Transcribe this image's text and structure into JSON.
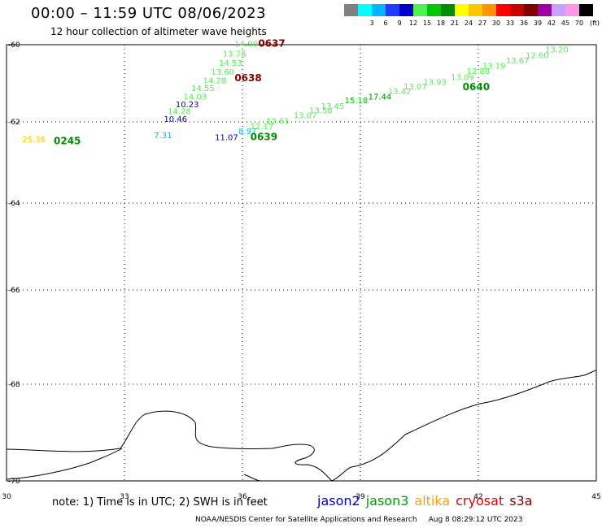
{
  "header": {
    "title": "00:00 – 11:59 UTC 08/06/2023",
    "subtitle": "12 hour collection of altimeter wave heights"
  },
  "colorbar": {
    "unit": "(ft)",
    "bins": [
      {
        "color": "#808080",
        "label": ""
      },
      {
        "color": "#00ffff",
        "label": "3"
      },
      {
        "color": "#00b4ff",
        "label": "6"
      },
      {
        "color": "#1e3cff",
        "label": "9"
      },
      {
        "color": "#0000c8",
        "label": "12"
      },
      {
        "color": "#50f050",
        "label": "15"
      },
      {
        "color": "#00c800",
        "label": "18"
      },
      {
        "color": "#008c00",
        "label": "21"
      },
      {
        "color": "#ffff00",
        "label": "24"
      },
      {
        "color": "#ffc800",
        "label": "27"
      },
      {
        "color": "#ff9600",
        "label": "30"
      },
      {
        "color": "#ff0000",
        "label": "33"
      },
      {
        "color": "#c80000",
        "label": "36"
      },
      {
        "color": "#800000",
        "label": "39"
      },
      {
        "color": "#a000a0",
        "label": "42"
      },
      {
        "color": "#c8a0ff",
        "label": "45"
      },
      {
        "color": "#ff96e6",
        "label": "70"
      },
      {
        "color": "#000000",
        "label": ""
      }
    ]
  },
  "map": {
    "lon_range": [
      30,
      45
    ],
    "lat_range": [
      -70,
      -60
    ],
    "lon_ticks": [
      "30",
      "33",
      "36",
      "39",
      "42",
      "45"
    ],
    "lat_ticks": [
      {
        "label": "-60",
        "lat": -60
      },
      {
        "label": "-62",
        "lat": -62
      },
      {
        "label": "-64",
        "lat": -64
      },
      {
        "label": "-66",
        "lat": -66
      },
      {
        "label": "-68",
        "lat": -68
      },
      {
        "label": "-70",
        "lat": -70
      }
    ],
    "observations": [
      {
        "text": "14.90",
        "lon": 35.8,
        "lat": -60.05,
        "color": "#50f050"
      },
      {
        "text": "13.78",
        "lon": 35.5,
        "lat": -60.3,
        "color": "#50f050"
      },
      {
        "text": "14.53",
        "lon": 35.4,
        "lat": -60.55,
        "color": "#50f050"
      },
      {
        "text": "13.60",
        "lon": 35.2,
        "lat": -60.78,
        "color": "#50f050"
      },
      {
        "text": "14.28",
        "lon": 35.0,
        "lat": -61.0,
        "color": "#50f050"
      },
      {
        "text": "14.55",
        "lon": 34.7,
        "lat": -61.2,
        "color": "#50f050"
      },
      {
        "text": "14.03",
        "lon": 34.5,
        "lat": -61.42,
        "color": "#50f050"
      },
      {
        "text": "10.23",
        "lon": 34.3,
        "lat": -61.62,
        "color": "#0000c8"
      },
      {
        "text": "14.28",
        "lon": 34.1,
        "lat": -61.8,
        "color": "#50f050"
      },
      {
        "text": "10.46",
        "lon": 34.0,
        "lat": -62.0,
        "color": "#0000c8"
      },
      {
        "text": "7.31",
        "lon": 33.75,
        "lat": -62.4,
        "color": "#00b4ff"
      },
      {
        "text": "25.36",
        "lon": 30.4,
        "lat": -62.5,
        "color": "#ffc800"
      },
      {
        "text": "11.07",
        "lon": 35.3,
        "lat": -62.45,
        "color": "#0000c8"
      },
      {
        "text": "8.97",
        "lon": 35.9,
        "lat": -62.3,
        "color": "#00b4ff"
      },
      {
        "text": "12.17",
        "lon": 36.2,
        "lat": -62.18,
        "color": "#50f050"
      },
      {
        "text": "12.61",
        "lon": 36.6,
        "lat": -62.05,
        "color": "#50f050"
      },
      {
        "text": "13.07",
        "lon": 37.3,
        "lat": -61.9,
        "color": "#50f050"
      },
      {
        "text": "13.58",
        "lon": 37.7,
        "lat": -61.78,
        "color": "#50f050"
      },
      {
        "text": "13.45",
        "lon": 38.0,
        "lat": -61.66,
        "color": "#50f050"
      },
      {
        "text": "15.18",
        "lon": 38.6,
        "lat": -61.52,
        "color": "#00c800"
      },
      {
        "text": "17.44",
        "lon": 39.2,
        "lat": -61.42,
        "color": "#008c00"
      },
      {
        "text": "13.42",
        "lon": 39.7,
        "lat": -61.28,
        "color": "#50f050"
      },
      {
        "text": "13.07",
        "lon": 40.1,
        "lat": -61.16,
        "color": "#50f050"
      },
      {
        "text": "13.93",
        "lon": 40.6,
        "lat": -61.04,
        "color": "#50f050"
      },
      {
        "text": "13.09",
        "lon": 41.3,
        "lat": -60.92,
        "color": "#50f050"
      },
      {
        "text": "12.88",
        "lon": 41.7,
        "lat": -60.76,
        "color": "#50f050"
      },
      {
        "text": "13.19",
        "lon": 42.1,
        "lat": -60.62,
        "color": "#50f050"
      },
      {
        "text": "13.67",
        "lon": 42.7,
        "lat": -60.48,
        "color": "#50f050"
      },
      {
        "text": "12.60",
        "lon": 43.2,
        "lat": -60.35,
        "color": "#50f050"
      },
      {
        "text": "13.20",
        "lon": 43.7,
        "lat": -60.2,
        "color": "#50f050"
      }
    ],
    "time_labels": [
      {
        "text": "0637",
        "lon": 36.4,
        "lat": -60.05,
        "color": "#800000"
      },
      {
        "text": "0638",
        "lon": 35.8,
        "lat": -60.95,
        "color": "#800000"
      },
      {
        "text": "0639",
        "lon": 36.2,
        "lat": -62.45,
        "color": "#008c00"
      },
      {
        "text": "0640",
        "lon": 41.6,
        "lat": -61.18,
        "color": "#008c00"
      },
      {
        "text": "0245",
        "lon": 31.2,
        "lat": -62.55,
        "color": "#008c00"
      }
    ]
  },
  "note": "note: 1) Time is in UTC; 2) SWH is in feet",
  "legend": [
    {
      "name": "jason2",
      "color": "#0000c8"
    },
    {
      "name": "jason3",
      "color": "#00a000"
    },
    {
      "name": "altika",
      "color": "#ffa000"
    },
    {
      "name": "cryosat",
      "color": "#e00000"
    },
    {
      "name": "s3a",
      "color": "#800000"
    }
  ],
  "footer": {
    "credit": "NOAA/NESDIS Center for Satellite Applications and Research",
    "timestamp": "Aug  8 08:29:12 UTC 2023"
  }
}
